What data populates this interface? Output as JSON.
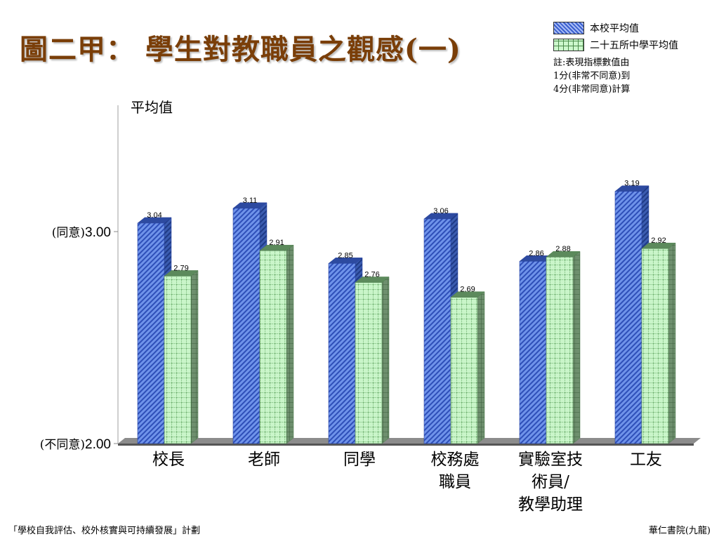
{
  "slide": {
    "title": "圖二甲： 學生對教職員之觀感(一)",
    "footer_left": "「學校自我評估、校外核實與可持續發展」計劃",
    "footer_right": "華仁書院(九龍)"
  },
  "legend": {
    "items": [
      "本校平均值",
      "二十五所中學平均值"
    ],
    "note_lines": [
      "註:表現指標數值由",
      "1分(非常不同意)到",
      "4分(非常同意)計算"
    ]
  },
  "colors": {
    "series_a": "#4f76dc",
    "series_b": "#c9f5c9",
    "title": "#7a3e08"
  },
  "chart_data": {
    "type": "bar",
    "ylabel": "平均值",
    "ylim": [
      2.0,
      3.3
    ],
    "y_ticks": [
      {
        "value": 2.0,
        "prefix": "(不同意)",
        "label": "2.00"
      },
      {
        "value": 3.0,
        "prefix": "(同意)",
        "label": "3.00"
      }
    ],
    "categories": [
      [
        "校長"
      ],
      [
        "老師"
      ],
      [
        "同學"
      ],
      [
        "校務處",
        "職員"
      ],
      [
        "實驗室技",
        "術員/",
        "教學助理"
      ],
      [
        "工友"
      ]
    ],
    "series": [
      {
        "name": "本校平均值",
        "values": [
          3.04,
          3.11,
          2.85,
          3.06,
          2.86,
          3.19
        ],
        "labels": [
          "3.04",
          "3.11",
          "2.85",
          "3.06",
          "2.86",
          "3.19"
        ]
      },
      {
        "name": "二十五所中學平均值",
        "values": [
          2.79,
          2.91,
          2.76,
          2.69,
          2.88,
          2.92
        ],
        "labels": [
          "2.79",
          "2.91",
          "2.76",
          "2.69",
          "2.88",
          "2.92"
        ]
      }
    ]
  }
}
